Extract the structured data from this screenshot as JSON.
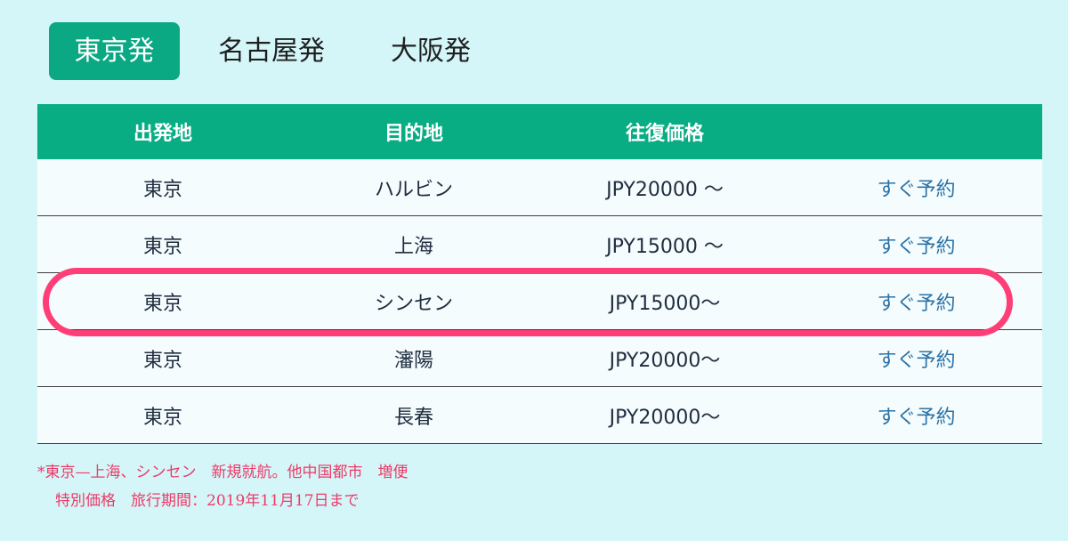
{
  "tabs": [
    {
      "label": "東京発",
      "active": true
    },
    {
      "label": "名古屋発",
      "active": false
    },
    {
      "label": "大阪発",
      "active": false
    }
  ],
  "table": {
    "headers": [
      "出発地",
      "目的地",
      "往復価格",
      ""
    ],
    "rows": [
      {
        "origin": "東京",
        "destination": "ハルビン",
        "price": "JPY20000 〜",
        "action": "すぐ予約"
      },
      {
        "origin": "東京",
        "destination": "上海",
        "price": "JPY15000 〜",
        "action": "すぐ予約"
      },
      {
        "origin": "東京",
        "destination": "シンセン",
        "price": "JPY15000〜",
        "action": "すぐ予約"
      },
      {
        "origin": "東京",
        "destination": "瀋陽",
        "price": "JPY20000〜",
        "action": "すぐ予約"
      },
      {
        "origin": "東京",
        "destination": "長春",
        "price": "JPY20000〜",
        "action": "すぐ予約"
      }
    ]
  },
  "notes": {
    "line1": "*東京—上海、シンセン　新規就航。他中国都市　増便",
    "line2": "特別価格　旅行期間：2019年11月17日まで"
  },
  "colors": {
    "background": "#d4f6f8",
    "accent": "#09ad84",
    "link": "#2a73a8",
    "highlight": "#ff3d76",
    "note": "#ee3a68"
  }
}
